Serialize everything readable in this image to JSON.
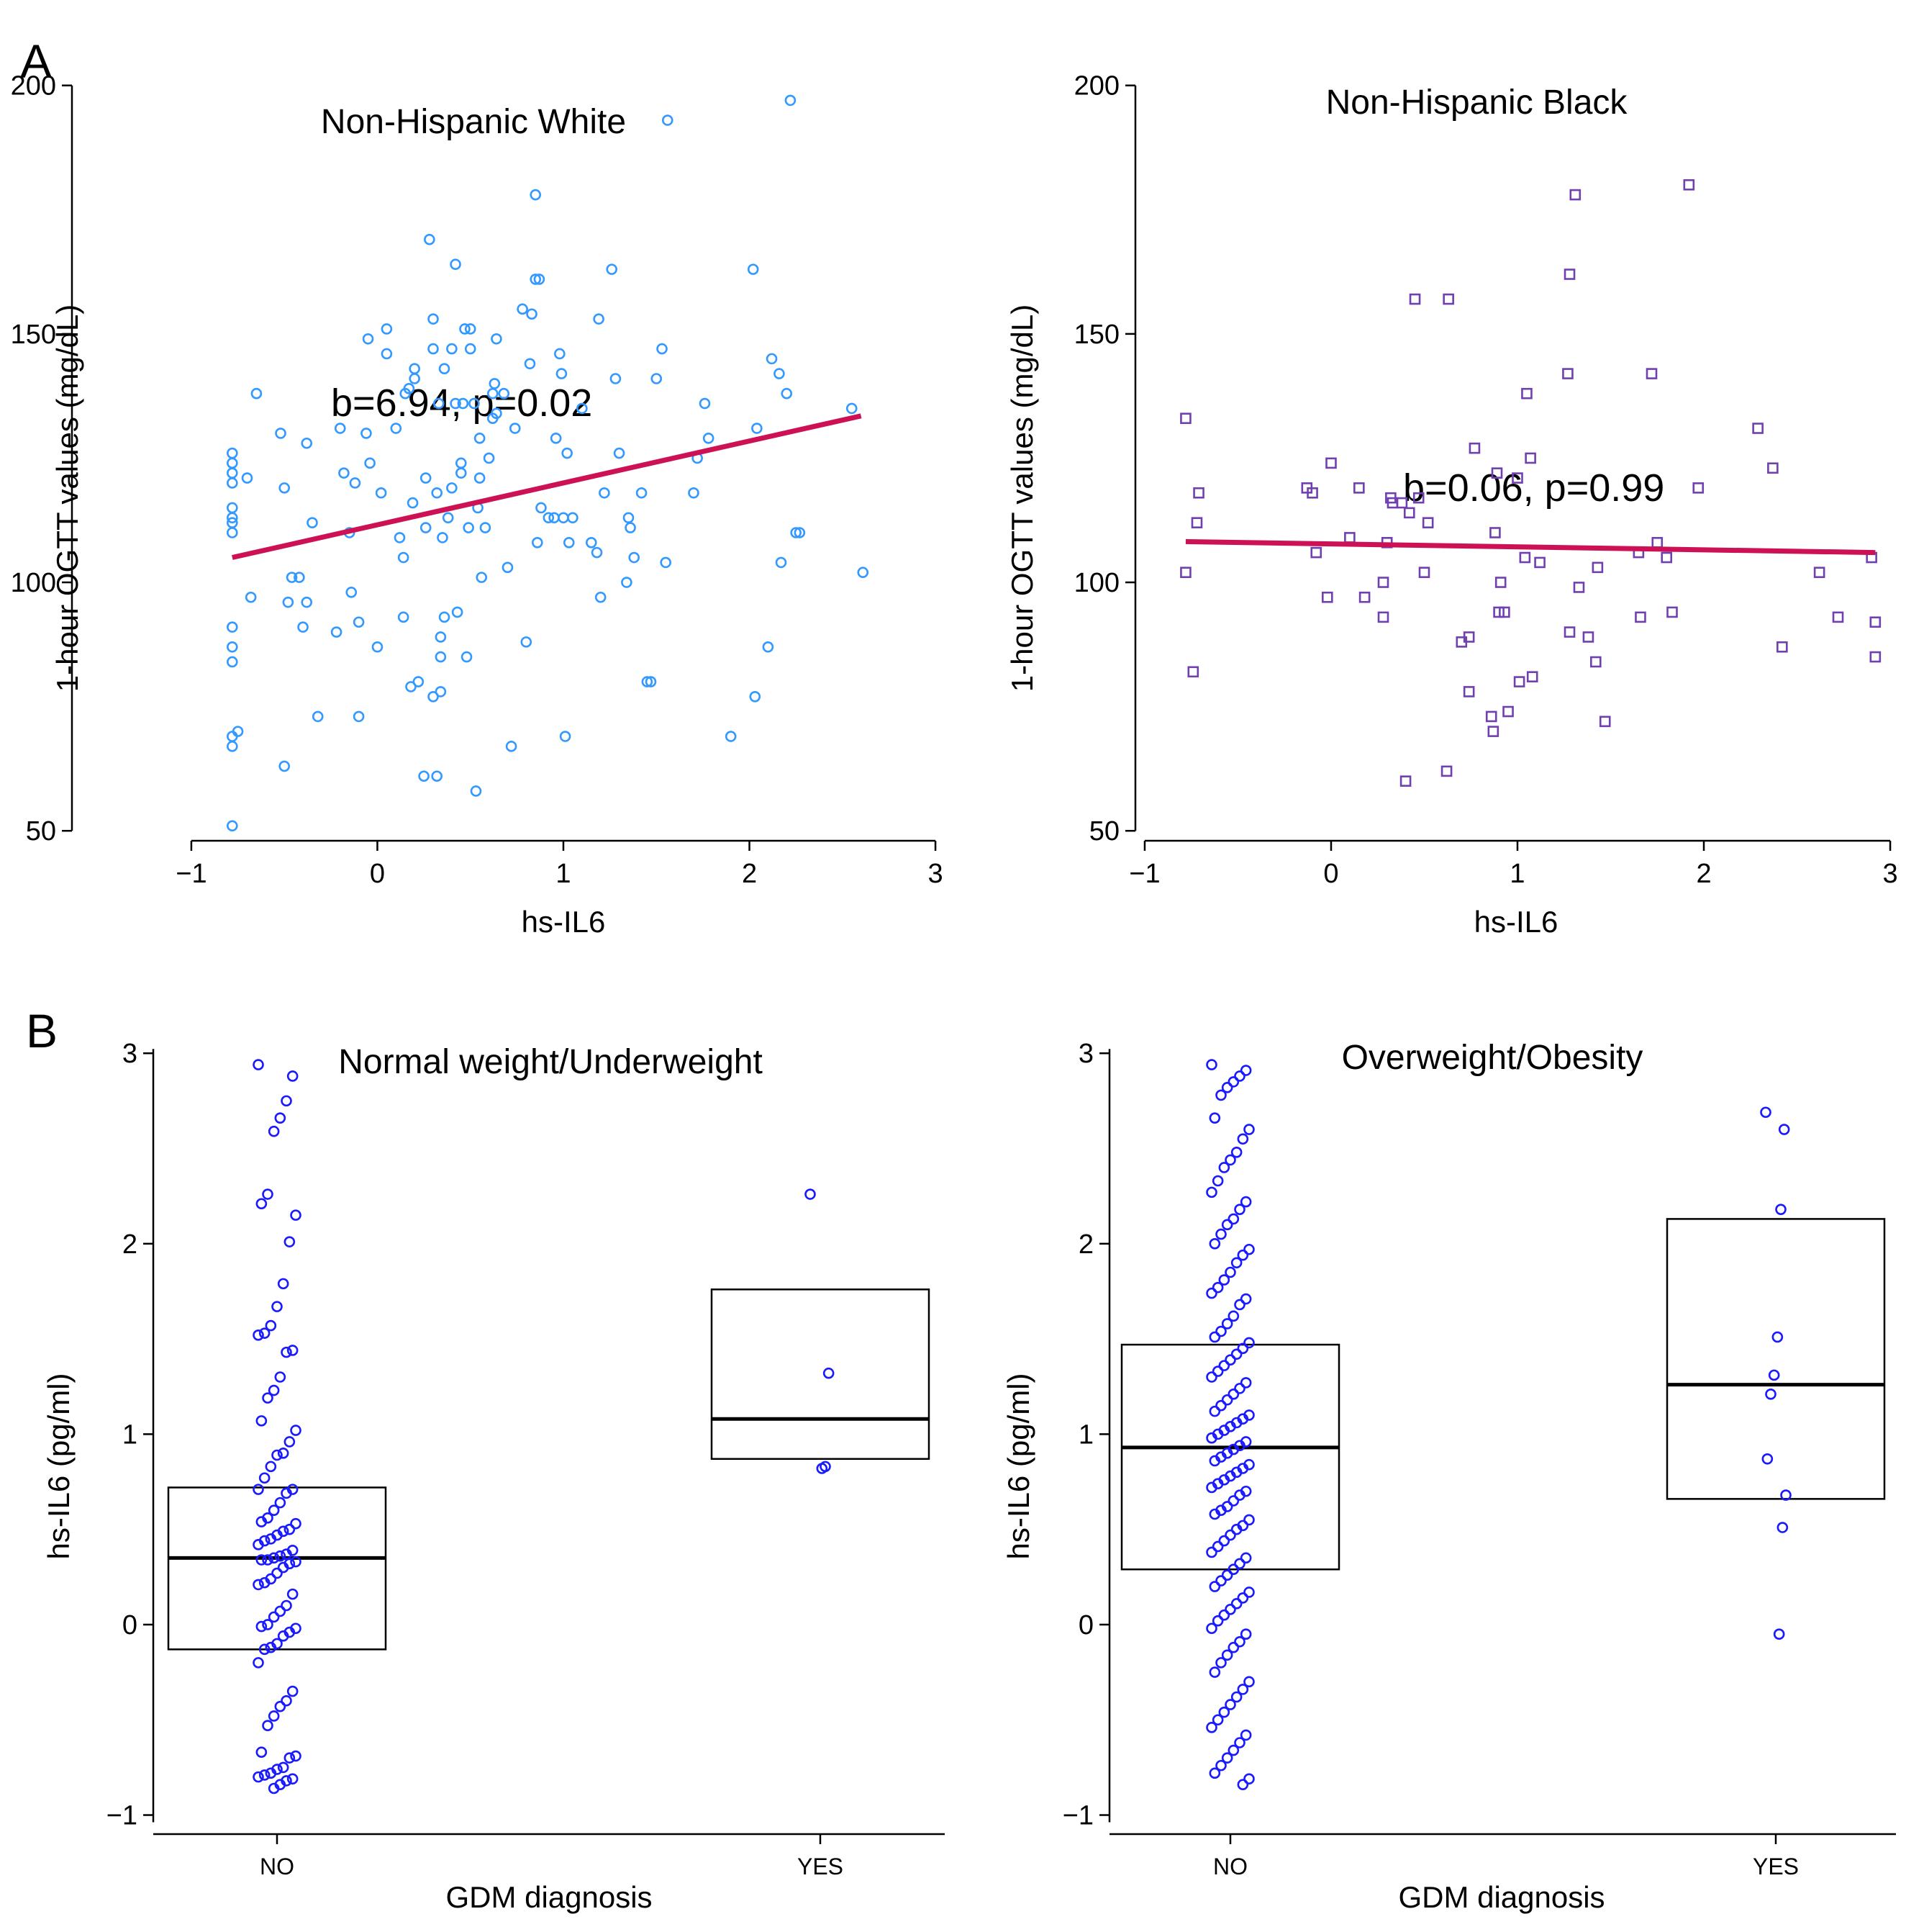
{
  "panel_labels": {
    "A": "A",
    "B": "B"
  },
  "colors": {
    "white_points": "#3399ff",
    "black_points": "#7040b0",
    "fit_line": "#cc1155",
    "box_points": "#1a1aff",
    "box_line": "#000000"
  },
  "chart_data": [
    {
      "id": "nhw",
      "type": "scatter",
      "title": "Non-Hispanic White",
      "xlabel": "hs-IL6",
      "ylabel": "1-hour OGTT values (mg/dL)",
      "xlim": [
        -1.05,
        3.05
      ],
      "ylim": [
        48,
        203
      ],
      "xticks": [
        -1,
        0,
        1,
        2,
        3
      ],
      "xtick_labels": [
        "−1",
        "0",
        "1",
        "2",
        "3"
      ],
      "yticks": [
        50,
        100,
        150,
        200
      ],
      "ytick_labels": [
        "50",
        "100",
        "150",
        "200"
      ],
      "marker": "circle",
      "annotation": "b=6.94, p=0.02",
      "fit_line": {
        "x": [
          -0.78,
          2.6
        ],
        "y": [
          105,
          133.5
        ]
      },
      "points": [
        [
          -0.78,
          126
        ],
        [
          -0.78,
          124
        ],
        [
          -0.78,
          122
        ],
        [
          -0.78,
          120
        ],
        [
          -0.78,
          115
        ],
        [
          -0.78,
          113
        ],
        [
          -0.78,
          112
        ],
        [
          -0.78,
          110
        ],
        [
          -0.78,
          91
        ],
        [
          -0.78,
          87
        ],
        [
          -0.78,
          84
        ],
        [
          -0.78,
          69
        ],
        [
          -0.78,
          67
        ],
        [
          -0.78,
          51
        ],
        [
          -0.75,
          70
        ],
        [
          -0.7,
          121
        ],
        [
          -0.68,
          97
        ],
        [
          -0.65,
          138
        ],
        [
          -0.52,
          130
        ],
        [
          -0.5,
          119
        ],
        [
          -0.5,
          63
        ],
        [
          -0.48,
          96
        ],
        [
          -0.46,
          101
        ],
        [
          -0.42,
          101
        ],
        [
          -0.4,
          91
        ],
        [
          -0.38,
          128
        ],
        [
          -0.38,
          96
        ],
        [
          -0.35,
          112
        ],
        [
          -0.32,
          73
        ],
        [
          -0.22,
          90
        ],
        [
          -0.2,
          131
        ],
        [
          -0.18,
          122
        ],
        [
          -0.15,
          110
        ],
        [
          -0.14,
          98
        ],
        [
          -0.12,
          120
        ],
        [
          -0.1,
          92
        ],
        [
          -0.1,
          73
        ],
        [
          -0.06,
          130
        ],
        [
          -0.05,
          149
        ],
        [
          -0.04,
          124
        ],
        [
          0,
          87
        ],
        [
          0.02,
          118
        ],
        [
          0.05,
          146
        ],
        [
          0.05,
          151
        ],
        [
          0.1,
          131
        ],
        [
          0.12,
          109
        ],
        [
          0.14,
          93
        ],
        [
          0.14,
          105
        ],
        [
          0.15,
          138
        ],
        [
          0.17,
          139
        ],
        [
          0.18,
          79
        ],
        [
          0.19,
          116
        ],
        [
          0.2,
          141
        ],
        [
          0.2,
          143
        ],
        [
          0.22,
          80
        ],
        [
          0.25,
          61
        ],
        [
          0.26,
          121
        ],
        [
          0.26,
          111
        ],
        [
          0.28,
          169
        ],
        [
          0.3,
          77
        ],
        [
          0.3,
          147
        ],
        [
          0.3,
          153
        ],
        [
          0.32,
          118
        ],
        [
          0.32,
          61
        ],
        [
          0.33,
          136
        ],
        [
          0.34,
          89
        ],
        [
          0.34,
          85
        ],
        [
          0.34,
          78
        ],
        [
          0.35,
          109
        ],
        [
          0.36,
          143
        ],
        [
          0.36,
          93
        ],
        [
          0.38,
          113
        ],
        [
          0.4,
          147
        ],
        [
          0.4,
          119
        ],
        [
          0.42,
          136
        ],
        [
          0.42,
          164
        ],
        [
          0.43,
          94
        ],
        [
          0.45,
          124
        ],
        [
          0.45,
          122
        ],
        [
          0.46,
          136
        ],
        [
          0.47,
          151
        ],
        [
          0.48,
          85
        ],
        [
          0.49,
          111
        ],
        [
          0.5,
          147
        ],
        [
          0.5,
          151
        ],
        [
          0.52,
          136
        ],
        [
          0.53,
          58
        ],
        [
          0.54,
          115
        ],
        [
          0.55,
          121
        ],
        [
          0.55,
          129
        ],
        [
          0.56,
          101
        ],
        [
          0.58,
          111
        ],
        [
          0.6,
          125
        ],
        [
          0.62,
          133
        ],
        [
          0.62,
          138
        ],
        [
          0.63,
          140
        ],
        [
          0.64,
          149
        ],
        [
          0.64,
          134
        ],
        [
          0.68,
          138
        ],
        [
          0.7,
          103
        ],
        [
          0.72,
          67
        ],
        [
          0.74,
          131
        ],
        [
          0.78,
          155
        ],
        [
          0.8,
          88
        ],
        [
          0.82,
          144
        ],
        [
          0.83,
          154
        ],
        [
          0.85,
          161
        ],
        [
          0.85,
          178
        ],
        [
          0.86,
          108
        ],
        [
          0.87,
          161
        ],
        [
          0.88,
          115
        ],
        [
          0.92,
          113
        ],
        [
          0.95,
          113
        ],
        [
          0.96,
          129
        ],
        [
          0.98,
          146
        ],
        [
          0.99,
          142
        ],
        [
          1.0,
          113
        ],
        [
          1.01,
          69
        ],
        [
          1.02,
          126
        ],
        [
          1.03,
          108
        ],
        [
          1.05,
          113
        ],
        [
          1.1,
          135
        ],
        [
          1.15,
          108
        ],
        [
          1.18,
          106
        ],
        [
          1.19,
          153
        ],
        [
          1.2,
          97
        ],
        [
          1.22,
          118
        ],
        [
          1.26,
          163
        ],
        [
          1.28,
          141
        ],
        [
          1.3,
          126
        ],
        [
          1.34,
          100
        ],
        [
          1.35,
          113
        ],
        [
          1.36,
          111
        ],
        [
          1.38,
          105
        ],
        [
          1.42,
          118
        ],
        [
          1.45,
          80
        ],
        [
          1.47,
          80
        ],
        [
          1.5,
          141
        ],
        [
          1.53,
          147
        ],
        [
          1.55,
          104
        ],
        [
          1.56,
          193
        ],
        [
          1.7,
          118
        ],
        [
          1.72,
          125
        ],
        [
          1.76,
          136
        ],
        [
          1.78,
          129
        ],
        [
          1.9,
          69
        ],
        [
          2.02,
          163
        ],
        [
          2.03,
          77
        ],
        [
          2.04,
          131
        ],
        [
          2.1,
          87
        ],
        [
          2.12,
          145
        ],
        [
          2.16,
          142
        ],
        [
          2.2,
          138
        ],
        [
          2.17,
          104
        ],
        [
          2.22,
          197
        ],
        [
          2.25,
          110
        ],
        [
          2.27,
          110
        ],
        [
          2.55,
          135
        ],
        [
          2.61,
          102
        ]
      ]
    },
    {
      "id": "nhb",
      "type": "scatter",
      "title": "Non-Hispanic Black",
      "xlabel": "hs-IL6",
      "ylabel": "1-hour OGTT values (mg/dL)",
      "xlim": [
        -1.05,
        3.05
      ],
      "ylim": [
        48,
        203
      ],
      "xticks": [
        -1,
        0,
        1,
        2,
        3
      ],
      "xtick_labels": [
        "−1",
        "0",
        "1",
        "2",
        "3"
      ],
      "yticks": [
        50,
        100,
        150,
        200
      ],
      "ytick_labels": [
        "50",
        "100",
        "150",
        "200"
      ],
      "marker": "square",
      "annotation": "b=0.06, p=0.99",
      "fit_line": {
        "x": [
          -0.78,
          2.92
        ],
        "y": [
          108.2,
          106
        ]
      },
      "points": [
        [
          -0.78,
          133
        ],
        [
          -0.78,
          102
        ],
        [
          -0.74,
          82
        ],
        [
          -0.72,
          112
        ],
        [
          -0.71,
          118
        ],
        [
          -0.13,
          119
        ],
        [
          -0.1,
          118
        ],
        [
          -0.08,
          106
        ],
        [
          -0.02,
          97
        ],
        [
          0.0,
          124
        ],
        [
          0.1,
          109
        ],
        [
          0.15,
          119
        ],
        [
          0.18,
          97
        ],
        [
          0.28,
          100
        ],
        [
          0.28,
          93
        ],
        [
          0.3,
          108
        ],
        [
          0.32,
          117
        ],
        [
          0.33,
          116
        ],
        [
          0.38,
          116
        ],
        [
          0.4,
          60
        ],
        [
          0.42,
          114
        ],
        [
          0.45,
          157
        ],
        [
          0.47,
          117
        ],
        [
          0.5,
          102
        ],
        [
          0.52,
          112
        ],
        [
          0.62,
          62
        ],
        [
          0.63,
          157
        ],
        [
          0.7,
          88
        ],
        [
          0.74,
          78
        ],
        [
          0.74,
          89
        ],
        [
          0.77,
          127
        ],
        [
          0.86,
          73
        ],
        [
          0.87,
          70
        ],
        [
          0.88,
          110
        ],
        [
          0.89,
          122
        ],
        [
          0.9,
          94
        ],
        [
          0.91,
          100
        ],
        [
          0.93,
          94
        ],
        [
          0.95,
          74
        ],
        [
          1.0,
          121
        ],
        [
          1.01,
          80
        ],
        [
          1.04,
          105
        ],
        [
          1.05,
          138
        ],
        [
          1.07,
          125
        ],
        [
          1.08,
          81
        ],
        [
          1.12,
          104
        ],
        [
          1.27,
          142
        ],
        [
          1.28,
          90
        ],
        [
          1.28,
          162
        ],
        [
          1.31,
          178
        ],
        [
          1.33,
          99
        ],
        [
          1.38,
          89
        ],
        [
          1.42,
          84
        ],
        [
          1.43,
          103
        ],
        [
          1.47,
          72
        ],
        [
          1.65,
          106
        ],
        [
          1.66,
          93
        ],
        [
          1.72,
          142
        ],
        [
          1.75,
          108
        ],
        [
          1.8,
          105
        ],
        [
          1.83,
          94
        ],
        [
          1.97,
          119
        ],
        [
          1.92,
          180
        ],
        [
          2.29,
          131
        ],
        [
          2.37,
          123
        ],
        [
          2.42,
          87
        ],
        [
          2.62,
          102
        ],
        [
          2.72,
          93
        ],
        [
          2.9,
          105
        ],
        [
          2.92,
          92
        ],
        [
          2.92,
          85
        ]
      ]
    },
    {
      "id": "nw",
      "type": "box",
      "title": "Normal weight/Underweight",
      "xlabel": "GDM diagnosis",
      "ylabel": "hs-IL6 (pg/ml)",
      "categories": [
        "NO",
        "YES"
      ],
      "ylim": [
        -1.1,
        3.05
      ],
      "yticks": [
        -1,
        0,
        1,
        2,
        3
      ],
      "ytick_labels": [
        "−1",
        "0",
        "1",
        "2",
        "3"
      ],
      "boxes": [
        {
          "category": "NO",
          "q1": -0.13,
          "median": 0.35,
          "q3": 0.72
        },
        {
          "category": "YES",
          "q1": 0.87,
          "median": 1.08,
          "q3": 1.76
        }
      ],
      "points": {
        "NO": [
          2.94,
          2.88,
          2.75,
          2.66,
          2.59,
          2.26,
          2.21,
          2.15,
          2.01,
          1.79,
          1.67,
          1.57,
          1.53,
          1.52,
          1.44,
          1.43,
          1.3,
          1.23,
          1.19,
          1.07,
          1.02,
          0.96,
          0.9,
          0.89,
          0.83,
          0.77,
          0.71,
          0.71,
          0.69,
          0.64,
          0.6,
          0.56,
          0.54,
          0.53,
          0.5,
          0.49,
          0.47,
          0.45,
          0.44,
          0.42,
          0.39,
          0.37,
          0.36,
          0.35,
          0.34,
          0.34,
          0.33,
          0.32,
          0.3,
          0.27,
          0.24,
          0.22,
          0.21,
          0.16,
          0.1,
          0.07,
          0.04,
          0.0,
          -0.01,
          -0.02,
          -0.04,
          -0.06,
          -0.1,
          -0.12,
          -0.13,
          -0.2,
          -0.35,
          -0.4,
          -0.43,
          -0.48,
          -0.53,
          -0.67,
          -0.69,
          -0.7,
          -0.75,
          -0.76,
          -0.78,
          -0.79,
          -0.8,
          -0.81,
          -0.82,
          -0.84,
          -0.86
        ],
        "YES": [
          2.26,
          1.32,
          0.83,
          0.82
        ]
      }
    },
    {
      "id": "ow",
      "type": "box",
      "title": "Overweight/Obesity",
      "xlabel": "GDM diagnosis",
      "ylabel": "hs-IL6 (pg/ml)",
      "categories": [
        "NO",
        "YES"
      ],
      "ylim": [
        -1.1,
        3.05
      ],
      "yticks": [
        -1,
        0,
        1,
        2,
        3
      ],
      "ytick_labels": [
        "−1",
        "0",
        "1",
        "2",
        "3"
      ],
      "boxes": [
        {
          "category": "NO",
          "q1": 0.29,
          "median": 0.93,
          "q3": 1.47
        },
        {
          "category": "YES",
          "q1": 0.66,
          "median": 1.26,
          "q3": 2.13
        }
      ],
      "points": {
        "NO": [
          2.94,
          2.91,
          2.88,
          2.85,
          2.82,
          2.78,
          2.66,
          2.6,
          2.55,
          2.48,
          2.44,
          2.4,
          2.33,
          2.27,
          2.22,
          2.18,
          2.13,
          2.1,
          2.05,
          2.0,
          1.97,
          1.94,
          1.9,
          1.85,
          1.81,
          1.77,
          1.74,
          1.71,
          1.68,
          1.62,
          1.58,
          1.54,
          1.51,
          1.48,
          1.45,
          1.42,
          1.39,
          1.36,
          1.33,
          1.3,
          1.27,
          1.24,
          1.21,
          1.18,
          1.15,
          1.12,
          1.1,
          1.08,
          1.06,
          1.04,
          1.02,
          1.0,
          0.98,
          0.96,
          0.94,
          0.92,
          0.9,
          0.88,
          0.86,
          0.84,
          0.82,
          0.8,
          0.78,
          0.76,
          0.74,
          0.72,
          0.7,
          0.68,
          0.65,
          0.62,
          0.6,
          0.58,
          0.55,
          0.52,
          0.5,
          0.47,
          0.44,
          0.41,
          0.38,
          0.35,
          0.32,
          0.29,
          0.26,
          0.23,
          0.2,
          0.17,
          0.14,
          0.11,
          0.08,
          0.05,
          0.02,
          -0.02,
          -0.05,
          -0.09,
          -0.12,
          -0.16,
          -0.2,
          -0.25,
          -0.3,
          -0.34,
          -0.38,
          -0.42,
          -0.46,
          -0.5,
          -0.54,
          -0.58,
          -0.62,
          -0.66,
          -0.7,
          -0.74,
          -0.78,
          -0.81,
          -0.84
        ],
        "YES": [
          2.69,
          2.6,
          2.18,
          1.51,
          1.31,
          1.21,
          0.87,
          0.68,
          0.51,
          -0.05
        ]
      }
    }
  ]
}
